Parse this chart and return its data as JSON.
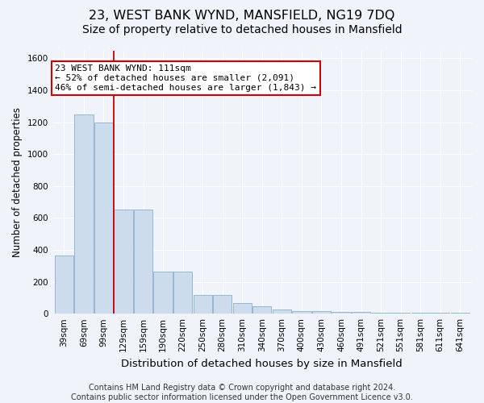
{
  "title": "23, WEST BANK WYND, MANSFIELD, NG19 7DQ",
  "subtitle": "Size of property relative to detached houses in Mansfield",
  "xlabel": "Distribution of detached houses by size in Mansfield",
  "ylabel": "Number of detached properties",
  "bar_color": "#ccdcec",
  "bar_edge_color": "#8ab0cc",
  "annotation_box_text": "23 WEST BANK WYND: 111sqm\n← 52% of detached houses are smaller (2,091)\n46% of semi-detached houses are larger (1,843) →",
  "vline_x_idx": 2,
  "vline_color": "#cc0000",
  "categories": [
    "39sqm",
    "69sqm",
    "99sqm",
    "129sqm",
    "159sqm",
    "190sqm",
    "220sqm",
    "250sqm",
    "280sqm",
    "310sqm",
    "340sqm",
    "370sqm",
    "400sqm",
    "430sqm",
    "460sqm",
    "491sqm",
    "521sqm",
    "551sqm",
    "581sqm",
    "611sqm",
    "641sqm"
  ],
  "values": [
    365,
    1250,
    1200,
    650,
    650,
    265,
    265,
    115,
    115,
    65,
    45,
    28,
    18,
    18,
    12,
    12,
    8,
    5,
    5,
    5,
    5
  ],
  "ylim": [
    0,
    1650
  ],
  "yticks": [
    0,
    200,
    400,
    600,
    800,
    1000,
    1200,
    1400,
    1600
  ],
  "footer": "Contains HM Land Registry data © Crown copyright and database right 2024.\nContains public sector information licensed under the Open Government Licence v3.0.",
  "bg_color": "#f0f4fa",
  "plot_bg_color": "#f0f4fa",
  "title_fontsize": 11.5,
  "subtitle_fontsize": 10,
  "xlabel_fontsize": 9.5,
  "ylabel_fontsize": 8.5,
  "footer_fontsize": 7,
  "annot_fontsize": 8,
  "tick_fontsize": 7.5
}
